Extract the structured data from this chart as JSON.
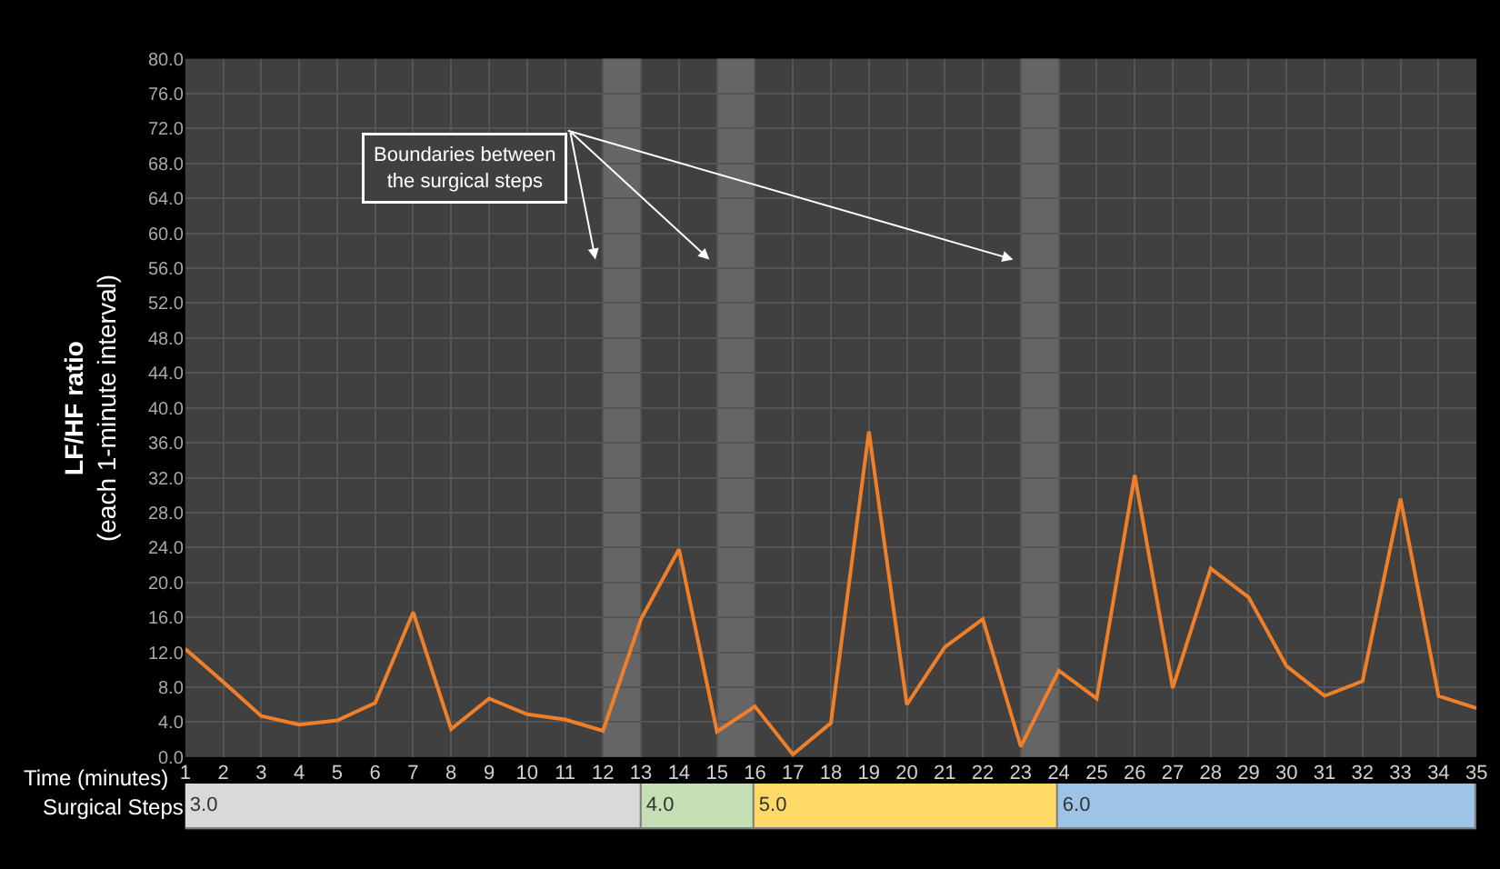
{
  "chart_data": [
    {
      "type": "line",
      "xlabel": "Time (minutes)",
      "ylabel": "LF/HF ratio\n(each 1-minute interval)",
      "x": [
        1,
        2,
        3,
        4,
        5,
        6,
        7,
        8,
        9,
        10,
        11,
        12,
        13,
        14,
        15,
        16,
        17,
        18,
        19,
        20,
        21,
        22,
        23,
        24,
        25,
        26,
        27,
        28,
        29,
        30,
        31,
        32,
        33,
        34,
        35
      ],
      "series": [
        {
          "color": "#f07f2a",
          "values": [
            12.4,
            8.6,
            4.7,
            3.7,
            4.2,
            6.2,
            16.6,
            3.2,
            6.7,
            4.9,
            4.3,
            3.0,
            15.8,
            23.8,
            2.9,
            5.8,
            0.3,
            3.9,
            37.3,
            6.0,
            12.6,
            15.8,
            1.2,
            9.9,
            6.7,
            32.3,
            7.9,
            21.6,
            18.3,
            10.4,
            7.0,
            8.7,
            29.6,
            7.0,
            5.6
          ]
        }
      ],
      "xlim": [
        1,
        35
      ],
      "xticks": [
        1,
        2,
        3,
        4,
        5,
        6,
        7,
        8,
        9,
        10,
        11,
        12,
        13,
        14,
        15,
        16,
        17,
        18,
        19,
        20,
        21,
        22,
        23,
        24,
        25,
        26,
        27,
        28,
        29,
        30,
        31,
        32,
        33,
        34,
        35
      ],
      "ylim": [
        0,
        80
      ],
      "yticks": [
        {
          "value": 0,
          "label": "0.0"
        },
        {
          "value": 4,
          "label": "4.0"
        },
        {
          "value": 8,
          "label": "8.0"
        },
        {
          "value": 12,
          "label": "12.0"
        },
        {
          "value": 16,
          "label": "16.0"
        },
        {
          "value": 20,
          "label": "20.0"
        },
        {
          "value": 24,
          "label": "24.0"
        },
        {
          "value": 28,
          "label": "28.0"
        },
        {
          "value": 32,
          "label": "32.0"
        },
        {
          "value": 36,
          "label": "36.0"
        },
        {
          "value": 40,
          "label": "40.0"
        },
        {
          "value": 44,
          "label": "44.0"
        },
        {
          "value": 48,
          "label": "48.0"
        },
        {
          "value": 52,
          "label": "52.0"
        },
        {
          "value": 56,
          "label": "56.0"
        },
        {
          "value": 60,
          "label": "60.0"
        },
        {
          "value": 64,
          "label": "64.0"
        },
        {
          "value": 68,
          "label": "68.0"
        },
        {
          "value": 72,
          "label": "72.0"
        },
        {
          "value": 76,
          "label": "76.0"
        },
        {
          "value": 80,
          "label": "80.0"
        }
      ],
      "bands": [
        {
          "axis": "x",
          "from": 12,
          "to": 13,
          "color": "#6e6e6e"
        },
        {
          "axis": "x",
          "from": 15,
          "to": 16,
          "color": "#6e6e6e"
        },
        {
          "axis": "x",
          "from": 23,
          "to": 24,
          "color": "#6e6e6e"
        }
      ],
      "annotations": [
        {
          "text": "Boundaries between\nthe surgical steps",
          "x": 11.8,
          "y": 57
        }
      ],
      "grid": true
    },
    {
      "type": "bar",
      "orientation": "horizontal",
      "categories": [
        "Surgical Steps"
      ],
      "series": [
        {
          "name": "3.0",
          "color": "#d9d9d9",
          "base": [
            1
          ],
          "values": [
            12
          ]
        },
        {
          "name": "4.0",
          "color": "#c5e0b4",
          "base": [
            13
          ],
          "values": [
            3
          ]
        },
        {
          "name": "5.0",
          "color": "#ffd966",
          "base": [
            16
          ],
          "values": [
            8
          ]
        },
        {
          "name": "6.0",
          "color": "#9dc3e6",
          "base": [
            24
          ],
          "values": [
            11
          ]
        }
      ],
      "xlim": [
        1,
        35
      ],
      "tick_labels": "y"
    }
  ]
}
